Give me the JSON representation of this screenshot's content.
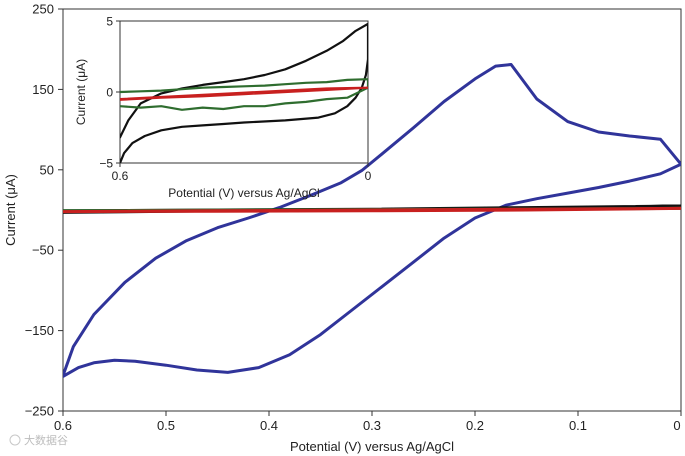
{
  "chart_data": [
    {
      "id": "main",
      "type": "line",
      "xlabel": "Potential (V) versus Ag/AgCl",
      "ylabel": "Current (μA)",
      "xlim": [
        0.6,
        0
      ],
      "ylim": [
        -250,
        250
      ],
      "x_ticks": [
        0.6,
        0.5,
        0.4,
        0.3,
        0.2,
        0.1,
        0
      ],
      "x_tick_labels": [
        "0.6",
        "0.5",
        "0.4",
        "0.3",
        "0.2",
        "0.1",
        "0"
      ],
      "y_ticks": [
        250,
        150,
        50,
        -50,
        -150,
        -250
      ],
      "y_tick_labels": [
        "250",
        "150",
        "50",
        "−50",
        "−150",
        "−250"
      ],
      "series": [
        {
          "name": "blue",
          "color": "#30349a",
          "points": [
            [
              0.6,
              -207
            ],
            [
              0.585,
              -196
            ],
            [
              0.57,
              -190
            ],
            [
              0.55,
              -187
            ],
            [
              0.53,
              -188
            ],
            [
              0.5,
              -193
            ],
            [
              0.47,
              -199
            ],
            [
              0.44,
              -202
            ],
            [
              0.41,
              -196
            ],
            [
              0.38,
              -180
            ],
            [
              0.35,
              -155
            ],
            [
              0.32,
              -125
            ],
            [
              0.29,
              -95
            ],
            [
              0.26,
              -65
            ],
            [
              0.23,
              -35
            ],
            [
              0.2,
              -10
            ],
            [
              0.17,
              6
            ],
            [
              0.14,
              14
            ],
            [
              0.11,
              21
            ],
            [
              0.08,
              28
            ],
            [
              0.05,
              36
            ],
            [
              0.02,
              45
            ],
            [
              0,
              57
            ],
            [
              0.02,
              88
            ],
            [
              0.05,
              92
            ],
            [
              0.08,
              97
            ],
            [
              0.11,
              110
            ],
            [
              0.14,
              138
            ],
            [
              0.165,
              181
            ],
            [
              0.18,
              179
            ],
            [
              0.2,
              163
            ],
            [
              0.23,
              135
            ],
            [
              0.26,
              102
            ],
            [
              0.29,
              70
            ],
            [
              0.31,
              49
            ],
            [
              0.33,
              34
            ],
            [
              0.36,
              18
            ],
            [
              0.39,
              3
            ],
            [
              0.42,
              -10
            ],
            [
              0.45,
              -22
            ],
            [
              0.48,
              -38
            ],
            [
              0.51,
              -60
            ],
            [
              0.54,
              -90
            ],
            [
              0.57,
              -130
            ],
            [
              0.59,
              -170
            ],
            [
              0.6,
              -206
            ]
          ]
        },
        {
          "name": "black",
          "color": "#111111",
          "points": [
            [
              0.6,
              -3
            ],
            [
              0.45,
              -1
            ],
            [
              0.3,
              0
            ],
            [
              0.15,
              2
            ],
            [
              0,
              5
            ],
            [
              0.15,
              3
            ],
            [
              0.3,
              1
            ],
            [
              0.45,
              0
            ],
            [
              0.6,
              -1
            ]
          ]
        },
        {
          "name": "green",
          "color": "#2f6d2f",
          "points": [
            [
              0.6,
              -1
            ],
            [
              0.3,
              0
            ],
            [
              0,
              2
            ],
            [
              0.3,
              0.5
            ],
            [
              0.6,
              -1
            ]
          ]
        },
        {
          "name": "red",
          "color": "#c8201f",
          "points": [
            [
              0.6,
              -2
            ],
            [
              0.45,
              -1
            ],
            [
              0.3,
              0
            ],
            [
              0.15,
              1
            ],
            [
              0,
              2
            ],
            [
              0.15,
              0
            ],
            [
              0.3,
              -1
            ],
            [
              0.45,
              -1.5
            ],
            [
              0.6,
              -2
            ]
          ]
        }
      ]
    },
    {
      "id": "inset",
      "type": "line",
      "xlabel": "Potential (V) versus Ag/AgCl",
      "ylabel": "Current (μA)",
      "xlim": [
        0.6,
        0
      ],
      "ylim": [
        -5,
        5
      ],
      "x_ticks": [
        0.6,
        0
      ],
      "x_tick_labels": [
        "0.6",
        "0"
      ],
      "y_ticks": [
        5,
        0,
        -5
      ],
      "y_tick_labels": [
        "5",
        "0",
        "−5"
      ],
      "series": [
        {
          "name": "black",
          "color": "#111111",
          "points": [
            [
              0.6,
              -5
            ],
            [
              0.59,
              -4.3
            ],
            [
              0.57,
              -3.6
            ],
            [
              0.54,
              -3.1
            ],
            [
              0.5,
              -2.7
            ],
            [
              0.45,
              -2.45
            ],
            [
              0.4,
              -2.35
            ],
            [
              0.35,
              -2.25
            ],
            [
              0.3,
              -2.15
            ],
            [
              0.2,
              -2.0
            ],
            [
              0.12,
              -1.8
            ],
            [
              0.08,
              -1.5
            ],
            [
              0.05,
              -1.0
            ],
            [
              0.03,
              -0.4
            ],
            [
              0.015,
              0.3
            ],
            [
              0.005,
              1.2
            ],
            [
              0,
              2.3
            ],
            [
              0,
              4.8
            ],
            [
              0.03,
              4.3
            ],
            [
              0.06,
              3.6
            ],
            [
              0.1,
              2.9
            ],
            [
              0.15,
              2.2
            ],
            [
              0.2,
              1.6
            ],
            [
              0.25,
              1.2
            ],
            [
              0.3,
              0.9
            ],
            [
              0.35,
              0.7
            ],
            [
              0.4,
              0.5
            ],
            [
              0.45,
              0.25
            ],
            [
              0.5,
              -0.1
            ],
            [
              0.55,
              -0.8
            ],
            [
              0.58,
              -2.0
            ],
            [
              0.6,
              -3.2
            ]
          ]
        },
        {
          "name": "green",
          "color": "#2f6d2f",
          "points": [
            [
              0.6,
              -1.0
            ],
            [
              0.55,
              -1.1
            ],
            [
              0.5,
              -1.0
            ],
            [
              0.45,
              -1.25
            ],
            [
              0.4,
              -1.1
            ],
            [
              0.35,
              -1.2
            ],
            [
              0.3,
              -1.0
            ],
            [
              0.25,
              -1.0
            ],
            [
              0.2,
              -0.8
            ],
            [
              0.15,
              -0.7
            ],
            [
              0.1,
              -0.5
            ],
            [
              0.05,
              -0.4
            ],
            [
              0,
              0.3
            ],
            [
              0,
              0.9
            ],
            [
              0.05,
              0.85
            ],
            [
              0.1,
              0.7
            ],
            [
              0.15,
              0.65
            ],
            [
              0.2,
              0.55
            ],
            [
              0.25,
              0.45
            ],
            [
              0.3,
              0.4
            ],
            [
              0.35,
              0.35
            ],
            [
              0.4,
              0.3
            ],
            [
              0.45,
              0.2
            ],
            [
              0.5,
              0.1
            ],
            [
              0.55,
              0.05
            ],
            [
              0.6,
              0.0
            ]
          ]
        },
        {
          "name": "red",
          "color": "#c8201f",
          "points": [
            [
              0.6,
              -0.55
            ],
            [
              0.5,
              -0.4
            ],
            [
              0.4,
              -0.3
            ],
            [
              0.3,
              -0.15
            ],
            [
              0.2,
              0.0
            ],
            [
              0.1,
              0.15
            ],
            [
              0,
              0.3
            ],
            [
              0.1,
              0.25
            ],
            [
              0.2,
              0.1
            ],
            [
              0.3,
              -0.05
            ],
            [
              0.4,
              -0.2
            ],
            [
              0.5,
              -0.35
            ],
            [
              0.6,
              -0.5
            ]
          ]
        }
      ]
    }
  ],
  "watermark": "大数据谷"
}
